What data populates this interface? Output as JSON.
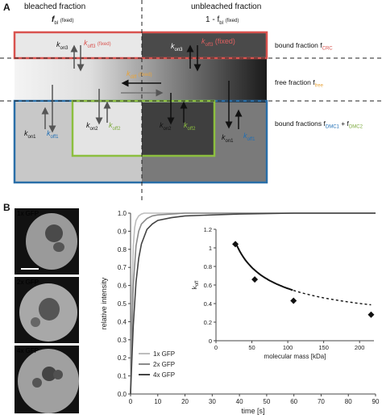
{
  "panel_a": {
    "letter": "A",
    "header_left": "bleached fraction",
    "header_right": "unbleached fraction",
    "f_bl_left": "f",
    "f_bl_left_sub": "bl",
    "fixed_note": "(fixed)",
    "f_bl_right_prefix": "1 - f",
    "f_bl_right_sub": "bl",
    "label_bound_crc": "bound fraction f",
    "label_bound_crc_sub": "CRC",
    "label_free": "free fraction f",
    "label_free_sub": "free",
    "label_bound_dmc": "bound fractions f",
    "label_bound_dmc_sub1": "DMC1",
    "label_bound_dmc_plus": " + f",
    "label_bound_dmc_sub2": "DMC2",
    "k_on3_left": "k",
    "k_on3_left_sub": "on3",
    "k_off3_left": "k",
    "k_off3_left_sub": "off3",
    "k_off3_left_fixed": "(fixed)",
    "k_on3_right": "k",
    "k_on3_right_sub": "on3",
    "k_off3_right": "k",
    "k_off3_right_sub": "off3",
    "k_off3_right_fixed": "(fixed)",
    "k_diff": "k",
    "k_diff_sub": "diff",
    "k_diff_fixed": "(fixed)",
    "k_on1_left": "k",
    "k_on1_left_sub": "on1",
    "k_off1_left": "k",
    "k_off1_left_sub": "off1",
    "k_on2_left": "k",
    "k_on2_left_sub": "on2",
    "k_off2_left": "k",
    "k_off2_left_sub": "off2",
    "k_on2_right": "k",
    "k_on2_right_sub": "on2",
    "k_off2_right": "k",
    "k_off2_right_sub": "off2",
    "k_on1_right": "k",
    "k_on1_right_sub": "on1",
    "k_off1_right": "k",
    "k_off1_right_sub": "off1",
    "colors": {
      "crc_box": "#d9534f",
      "dmc1_box": "#2a6fa8",
      "dmc2_box": "#8cbf3f",
      "rate_orange": "#e8a33a",
      "label_blue": "#1e6eb5",
      "label_green": "#7aa83a",
      "label_red": "#d9534f"
    }
  },
  "panel_b": {
    "letter": "B",
    "cell_labels": [
      "1x GFP",
      "2x GFP",
      "4x GFP"
    ],
    "chart_data": [
      {
        "type": "line",
        "xlabel": "time [s]",
        "ylabel": "relative intensity",
        "xlim": [
          0,
          90
        ],
        "ylim": [
          0.0,
          1.0
        ],
        "x_ticks": [
          "0",
          "10",
          "20",
          "30",
          "40",
          "50",
          "60",
          "70",
          "80",
          "90"
        ],
        "y_ticks": [
          "0.0",
          "0.1",
          "0.2",
          "0.3",
          "0.4",
          "0.5",
          "0.6",
          "0.7",
          "0.8",
          "0.9",
          "1.0"
        ],
        "series": [
          {
            "name": "1x GFP",
            "color": "#bdbdbd",
            "x": [
              0,
              0.5,
              1,
              1.5,
              2,
              3,
              4,
              5,
              6,
              8,
              10,
              20,
              40,
              90
            ],
            "y": [
              0.0,
              0.55,
              0.82,
              0.92,
              0.96,
              0.985,
              0.995,
              1.0,
              1.0,
              1.0,
              1.0,
              1.0,
              1.0,
              1.0
            ]
          },
          {
            "name": "2x GFP",
            "color": "#8a8a8a",
            "x": [
              0,
              0.5,
              1,
              2,
              3,
              4,
              6,
              8,
              10,
              15,
              20,
              40,
              90
            ],
            "y": [
              0.0,
              0.35,
              0.6,
              0.82,
              0.9,
              0.94,
              0.97,
              0.985,
              0.99,
              0.995,
              1.0,
              1.0,
              1.0
            ]
          },
          {
            "name": "4x GFP",
            "color": "#444444",
            "x": [
              0,
              0.5,
              1,
              2,
              3,
              4,
              6,
              8,
              10,
              15,
              20,
              30,
              40,
              60,
              90
            ],
            "y": [
              0.0,
              0.2,
              0.38,
              0.62,
              0.75,
              0.83,
              0.91,
              0.94,
              0.96,
              0.975,
              0.985,
              0.99,
              0.995,
              1.0,
              1.0
            ]
          }
        ],
        "legend": [
          "1x GFP",
          "2x GFP",
          "4x GFP"
        ],
        "legend_placement": "bottom-left"
      },
      {
        "type": "scatter",
        "xlabel": "molecular mass [kDa]",
        "ylabel": "k",
        "ylabel_sub": "off",
        "xlim": [
          0,
          220
        ],
        "ylim": [
          0,
          1.2
        ],
        "x_ticks": [
          "0",
          "50",
          "100",
          "150",
          "200"
        ],
        "y_ticks": [
          "0",
          "0.2",
          "0.4",
          "0.6",
          "0.8",
          "1",
          "1.2"
        ],
        "x": [
          27,
          54,
          108,
          216
        ],
        "y": [
          1.04,
          0.66,
          0.43,
          0.28
        ],
        "fit_solid_until": 108,
        "marker": "diamond"
      }
    ]
  }
}
